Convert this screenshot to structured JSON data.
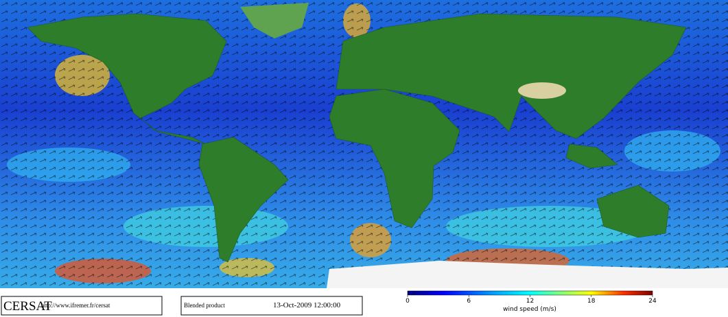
{
  "footer": {
    "brand": "CERSAT",
    "url": "http://www.ifremer.fr/cersat",
    "product": "Blended product",
    "date": "13-Oct-2009 12:00:00"
  },
  "colorbar": {
    "label": "wind speed (m/s)",
    "range": [
      0,
      24
    ],
    "ticks": [
      0,
      6,
      12,
      18,
      24
    ]
  }
}
